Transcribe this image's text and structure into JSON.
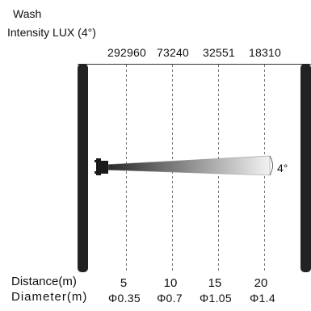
{
  "title": "Wash",
  "subtitle": "Intensity LUX (4°)",
  "beam_angle_label": "4°",
  "distance_label": "Distance(m)",
  "diameter_label": "Diameter(m)",
  "columns": [
    {
      "lux": "292960",
      "distance": "5",
      "diameter": "Φ0.35"
    },
    {
      "lux": "73240",
      "distance": "10",
      "diameter": "Φ0.7"
    },
    {
      "lux": "32551",
      "distance": "15",
      "diameter": "Φ1.05"
    },
    {
      "lux": "18310",
      "distance": "20",
      "diameter": "Φ1.4"
    }
  ],
  "colors": {
    "wall": "#222222",
    "beam_start": "#2a2a2a",
    "beam_end": "#f2f2f2",
    "guide": "#555555"
  }
}
